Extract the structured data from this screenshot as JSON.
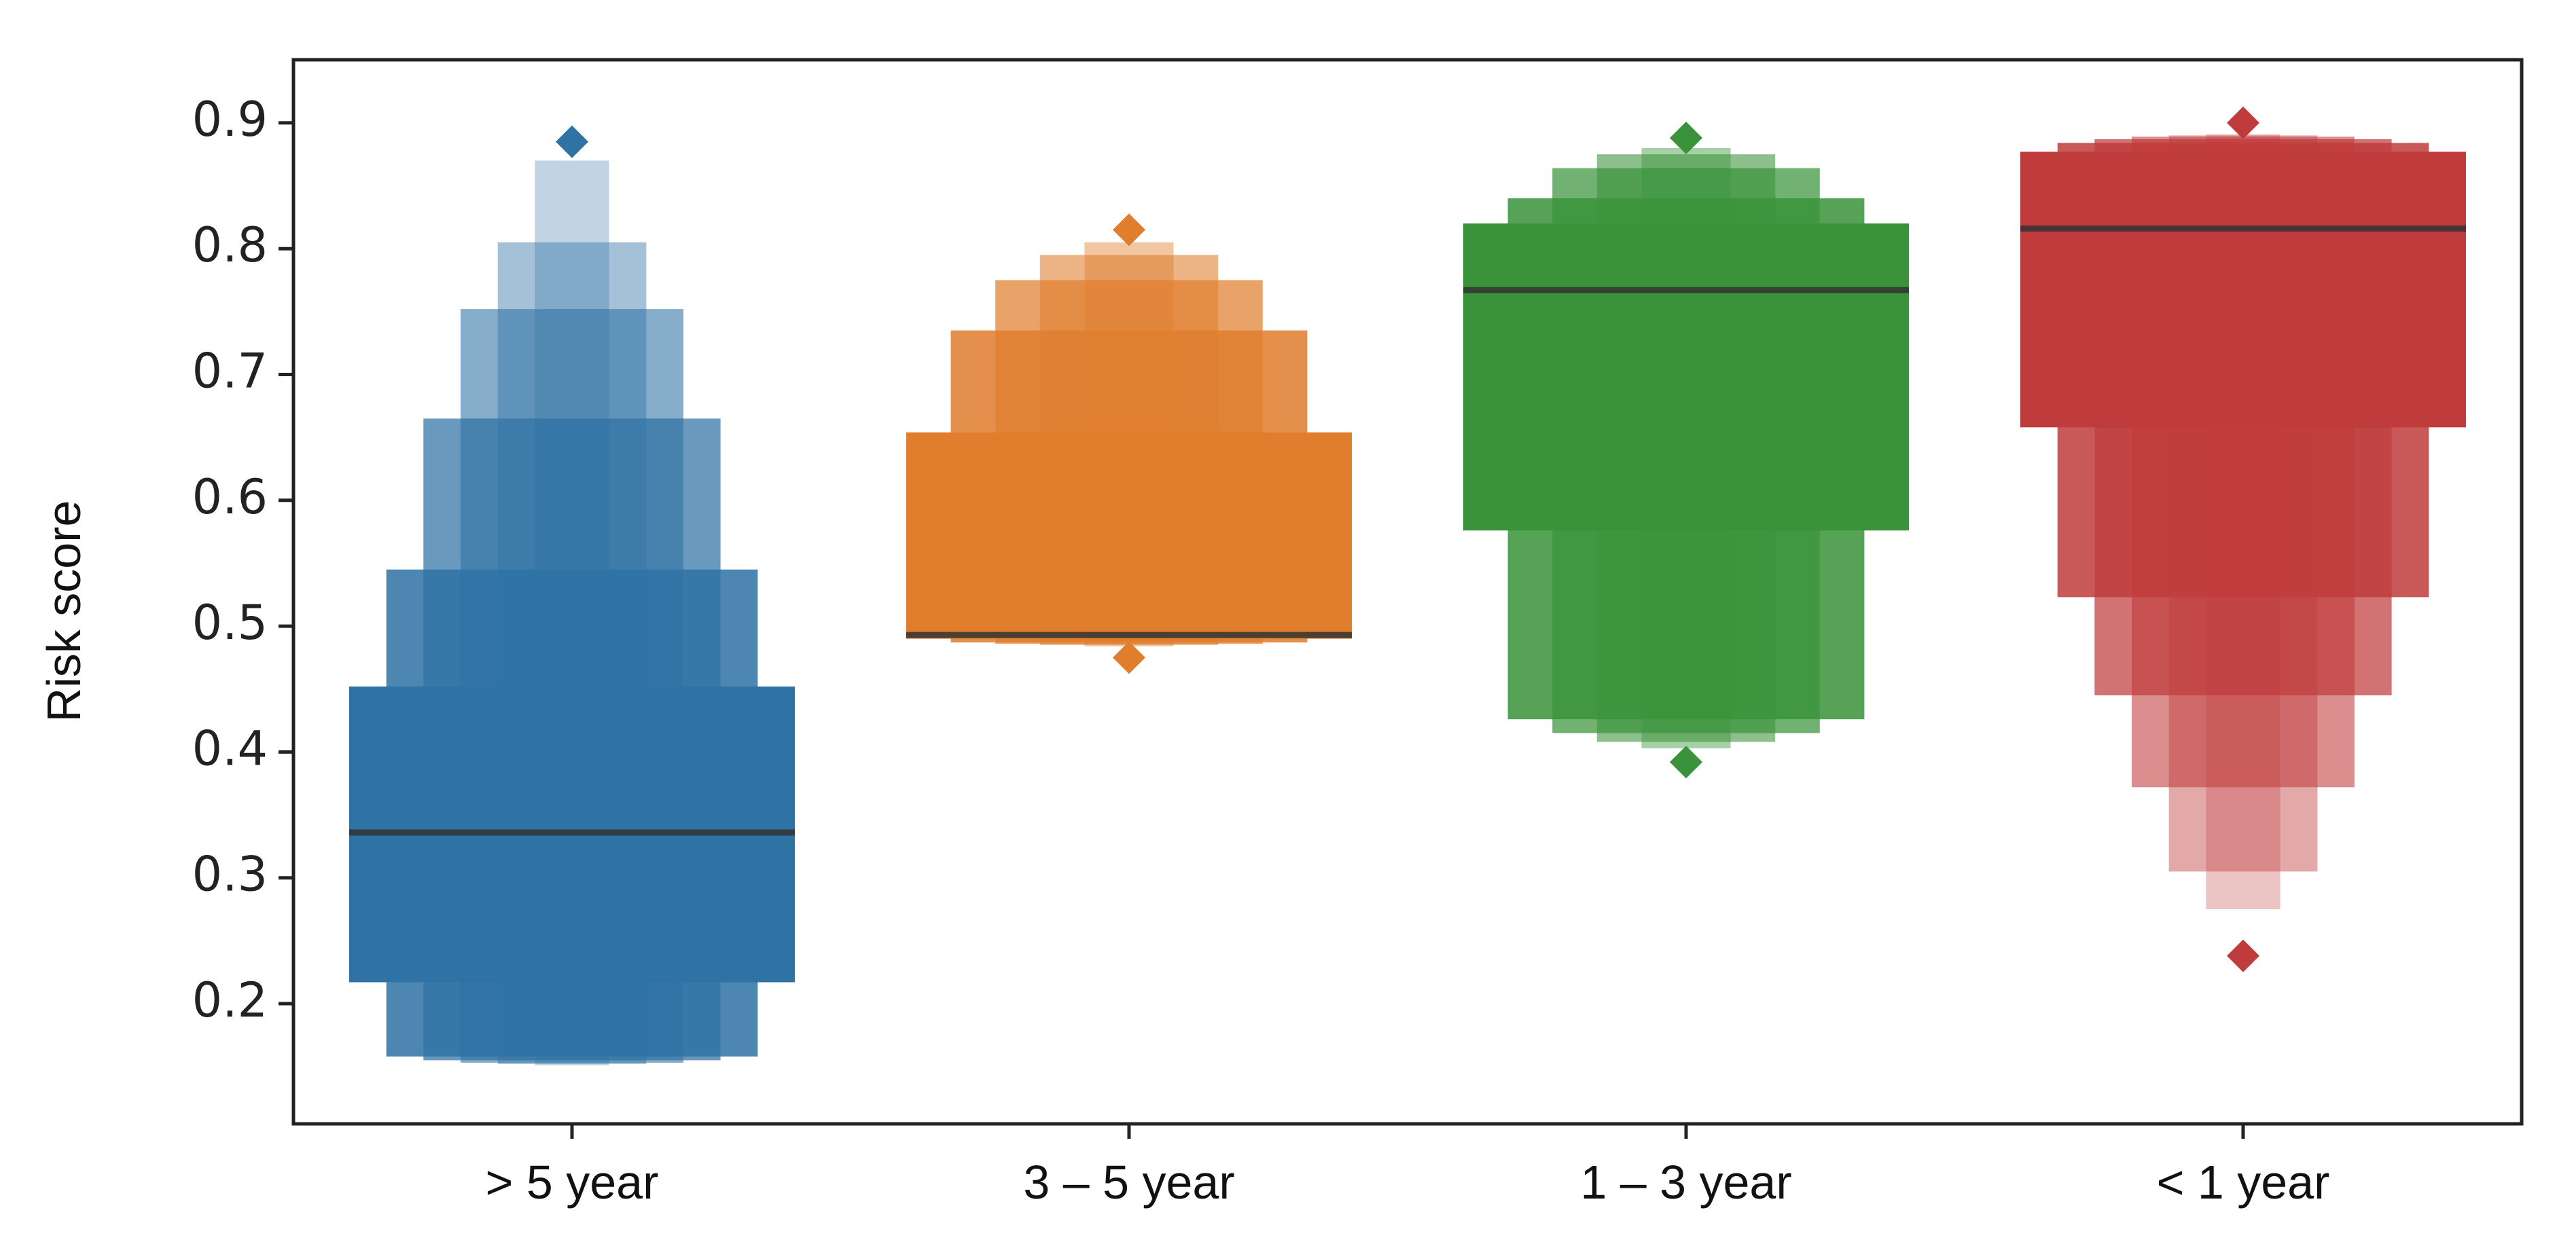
{
  "chart_data": {
    "type": "boxenplot",
    "title": "",
    "xlabel": "",
    "ylabel": "Risk score",
    "ylim": [
      0.15,
      0.95
    ],
    "yticks": [
      0.2,
      0.3,
      0.4,
      0.5,
      0.6,
      0.7,
      0.8,
      0.9
    ],
    "ytick_labels": [
      "0.2",
      "0.3",
      "0.4",
      "0.5",
      "0.6",
      "0.7",
      "0.8",
      "0.9"
    ],
    "grid": false,
    "categories": [
      "> 5 year",
      "3 – 5 year",
      "1 – 3 year",
      "< 1 year"
    ],
    "colors": [
      "#2f72a4",
      "#e07e2e",
      "#3a933a",
      "#c03c3c"
    ],
    "median_color": "#333333",
    "series": [
      {
        "category": "> 5 year",
        "median": 0.336,
        "boxes": [
          {
            "low": 0.217,
            "high": 0.452
          },
          {
            "low": 0.158,
            "high": 0.545
          },
          {
            "low": 0.155,
            "high": 0.665
          },
          {
            "low": 0.153,
            "high": 0.752
          },
          {
            "low": 0.152,
            "high": 0.805
          },
          {
            "low": 0.151,
            "high": 0.87
          }
        ],
        "outliers": [
          0.885
        ]
      },
      {
        "category": "3 – 5 year",
        "median": 0.493,
        "boxes": [
          {
            "low": 0.49,
            "high": 0.654
          },
          {
            "low": 0.487,
            "high": 0.735
          },
          {
            "low": 0.486,
            "high": 0.775
          },
          {
            "low": 0.485,
            "high": 0.795
          },
          {
            "low": 0.484,
            "high": 0.805
          }
        ],
        "outliers": [
          0.475,
          0.815
        ]
      },
      {
        "category": "1 – 3 year",
        "median": 0.767,
        "boxes": [
          {
            "low": 0.576,
            "high": 0.82
          },
          {
            "low": 0.426,
            "high": 0.84
          },
          {
            "low": 0.415,
            "high": 0.864
          },
          {
            "low": 0.408,
            "high": 0.875
          },
          {
            "low": 0.403,
            "high": 0.88
          }
        ],
        "outliers": [
          0.392,
          0.888
        ]
      },
      {
        "category": "< 1 year",
        "median": 0.816,
        "boxes": [
          {
            "low": 0.658,
            "high": 0.877
          },
          {
            "low": 0.523,
            "high": 0.884
          },
          {
            "low": 0.445,
            "high": 0.887
          },
          {
            "low": 0.372,
            "high": 0.889
          },
          {
            "low": 0.305,
            "high": 0.89
          },
          {
            "low": 0.275,
            "high": 0.891
          }
        ],
        "outliers": [
          0.238,
          0.9
        ]
      }
    ]
  }
}
